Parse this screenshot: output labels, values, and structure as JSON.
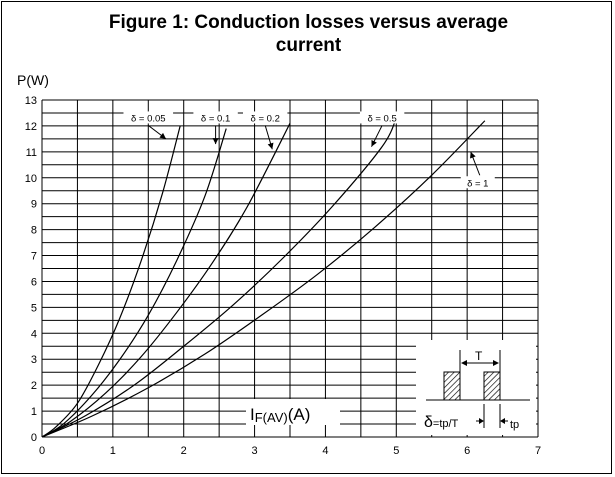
{
  "chart_data": {
    "type": "line",
    "title_line1": "Figure 1: Conduction losses versus average",
    "title_line2": "current",
    "ylabel": "P(W)",
    "xlabel_main": "I",
    "xlabel_sub": "F(AV)",
    "xlabel_unit": "(A)",
    "xlim": [
      0,
      7
    ],
    "ylim": [
      0,
      13
    ],
    "x_ticks": [
      0,
      1,
      2,
      3,
      4,
      5,
      6,
      7
    ],
    "y_ticks": [
      0,
      1,
      2,
      3,
      4,
      5,
      6,
      7,
      8,
      9,
      10,
      11,
      12,
      13
    ],
    "grid": true,
    "series": [
      {
        "name": "δ = 0.05",
        "x": [
          0,
          0.2,
          0.5,
          0.8,
          1.1,
          1.4,
          1.7,
          1.95
        ],
        "y": [
          0,
          0.4,
          1.3,
          2.8,
          4.6,
          6.8,
          9.4,
          12.0
        ]
      },
      {
        "name": "δ = 0.1",
        "x": [
          0,
          0.3,
          0.7,
          1.1,
          1.5,
          1.9,
          2.3,
          2.6
        ],
        "y": [
          0,
          0.5,
          1.6,
          3.0,
          4.7,
          6.8,
          9.3,
          11.9
        ]
      },
      {
        "name": "δ = 0.2",
        "x": [
          0,
          0.4,
          0.9,
          1.4,
          1.9,
          2.4,
          2.9,
          3.5
        ],
        "y": [
          0,
          0.6,
          1.7,
          3.1,
          4.8,
          6.7,
          8.9,
          12.1
        ]
      },
      {
        "name": "δ = 0.5",
        "x": [
          0,
          0.6,
          1.3,
          2.0,
          2.7,
          3.4,
          4.1,
          4.8,
          5.0
        ],
        "y": [
          0,
          0.8,
          2.0,
          3.5,
          5.1,
          6.9,
          8.9,
          11.2,
          12.3
        ]
      },
      {
        "name": "δ = 1",
        "x": [
          0,
          0.7,
          1.5,
          2.3,
          3.1,
          3.9,
          4.7,
          5.5,
          6.25
        ],
        "y": [
          0,
          0.8,
          1.9,
          3.2,
          4.7,
          6.3,
          8.1,
          10.1,
          12.2
        ]
      }
    ],
    "inset": {
      "T_label": "T",
      "delta_symbol": "δ",
      "formula": "=tp/T",
      "tp_label": "tp"
    }
  }
}
